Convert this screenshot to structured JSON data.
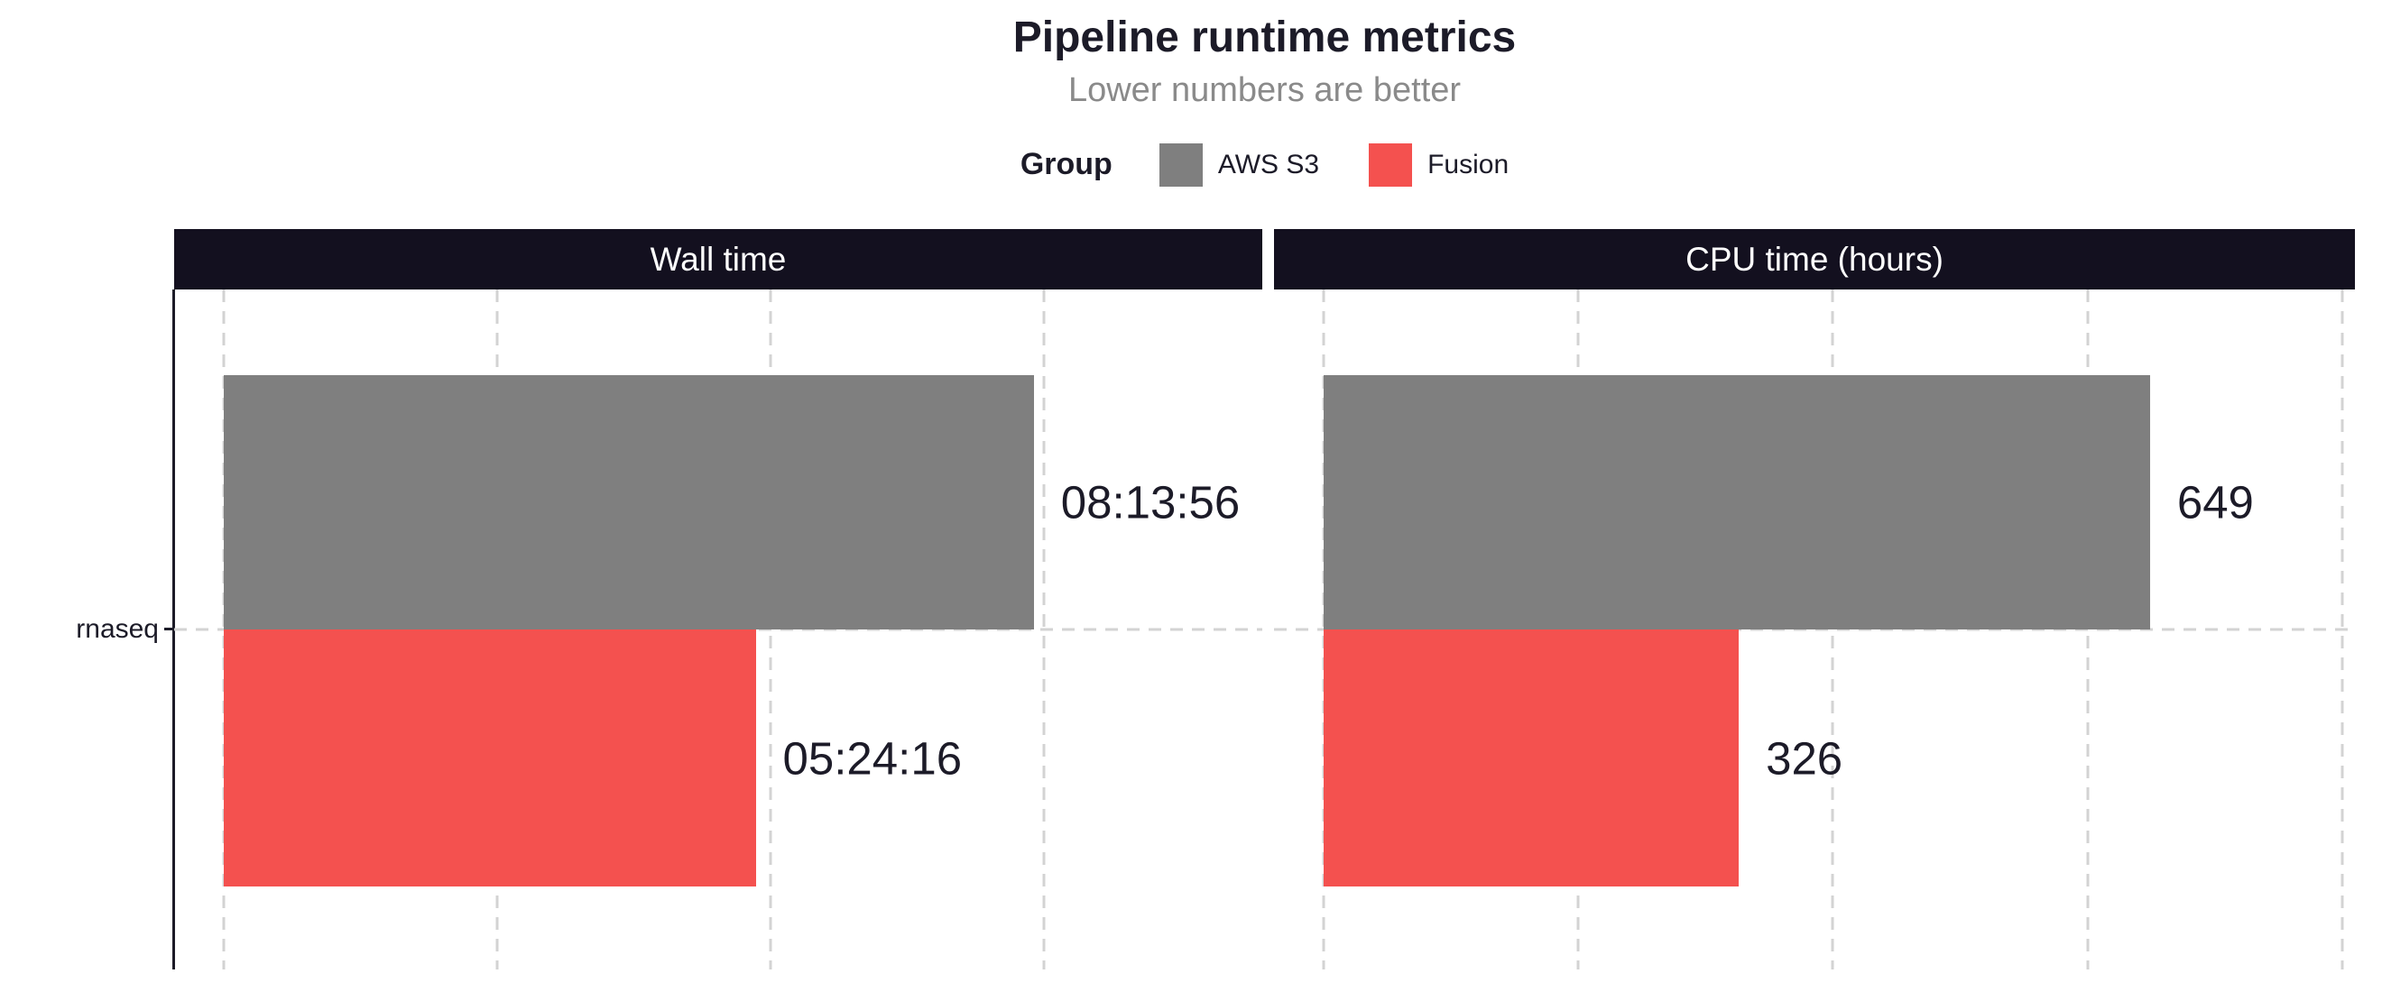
{
  "title": "Pipeline runtime metrics",
  "subtitle": "Lower numbers are better",
  "legend": {
    "title": "Group",
    "items": [
      {
        "label": "AWS S3",
        "color": "#7F7F7F"
      },
      {
        "label": "Fusion",
        "color": "#F4514F"
      }
    ]
  },
  "y_axis": {
    "category": "rnaseq"
  },
  "chart_data": {
    "type": "bar",
    "orientation": "horizontal",
    "title": "Pipeline runtime metrics",
    "subtitle": "Lower numbers are better",
    "legend_title": "Group",
    "legend_position": "top",
    "grid": "dashed",
    "categories": [
      "rnaseq"
    ],
    "facets": [
      {
        "label": "Wall time",
        "x_range": [
          0,
          38000
        ],
        "gridline_values": [
          0,
          10000,
          20000,
          30000
        ],
        "bars": [
          {
            "group": "AWS S3",
            "category": "rnaseq",
            "value": 29636,
            "label": "08:13:56",
            "color": "#7F7F7F"
          },
          {
            "group": "Fusion",
            "category": "rnaseq",
            "value": 19456,
            "label": "05:24:16",
            "color": "#F4514F"
          }
        ]
      },
      {
        "label": "CPU time (hours)",
        "x_range": [
          0,
          810
        ],
        "gridline_values": [
          0,
          200,
          400,
          600,
          800
        ],
        "bars": [
          {
            "group": "AWS S3",
            "category": "rnaseq",
            "value": 649,
            "label": "649",
            "color": "#7F7F7F"
          },
          {
            "group": "Fusion",
            "category": "rnaseq",
            "value": 326,
            "label": "326",
            "color": "#F4514F"
          }
        ]
      }
    ]
  },
  "colors": {
    "background": "#FFFFFF",
    "strip_background": "#13101F",
    "strip_text": "#FFFFFF",
    "dark_text": "#1C1B28",
    "subtitle_text": "#8A8A8A",
    "gridline": "#D3D3D3",
    "aws_s3": "#7F7F7F",
    "fusion": "#F4514F"
  }
}
